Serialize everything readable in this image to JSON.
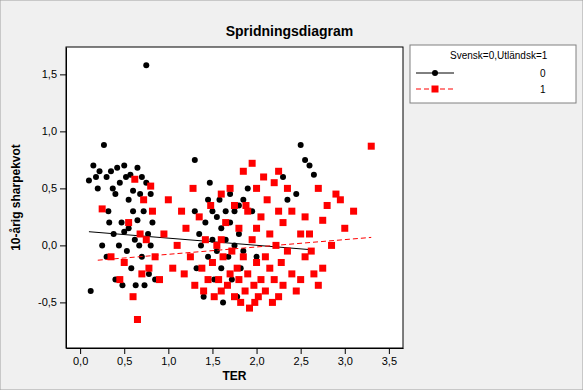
{
  "chart_data": {
    "type": "scatter",
    "title": "Spridningsdiagram",
    "x_label": "TER",
    "y_label": "10-årig sharpekvot",
    "legend_title": "Svensk=0,Utländsk=1",
    "legend": "outside-right",
    "grid": false,
    "xlim": [
      -0.16,
      3.66
    ],
    "ylim": [
      -0.9,
      1.74
    ],
    "xticks": [
      {
        "value": 0,
        "label": "0,0"
      },
      {
        "value": 0.5,
        "label": "0,5"
      },
      {
        "value": 1,
        "label": "1,0"
      },
      {
        "value": 1.5,
        "label": "1,5"
      },
      {
        "value": 2,
        "label": "2,0"
      },
      {
        "value": 2.5,
        "label": "2,5"
      },
      {
        "value": 3,
        "label": "3,0"
      },
      {
        "value": 3.5,
        "label": "3,5"
      }
    ],
    "yticks": [
      {
        "value": -0.5,
        "label": "-0,5"
      },
      {
        "value": 0,
        "label": "0,0"
      },
      {
        "value": 0.5,
        "label": "0,5"
      },
      {
        "value": 1,
        "label": "1,0"
      },
      {
        "value": 1.5,
        "label": "1,5"
      }
    ],
    "series": [
      {
        "name": "0",
        "color": "#000000",
        "marker": "circle",
        "line_style": "solid",
        "x": [
          0.1,
          0.12,
          0.15,
          0.18,
          0.2,
          0.22,
          0.25,
          0.27,
          0.3,
          0.3,
          0.32,
          0.33,
          0.35,
          0.37,
          0.38,
          0.4,
          0.4,
          0.42,
          0.44,
          0.45,
          0.47,
          0.48,
          0.5,
          0.5,
          0.52,
          0.53,
          0.55,
          0.55,
          0.57,
          0.58,
          0.6,
          0.6,
          0.62,
          0.63,
          0.65,
          0.65,
          0.67,
          0.68,
          0.7,
          0.7,
          0.72,
          0.73,
          0.75,
          0.75,
          0.77,
          0.78,
          0.8,
          0.8,
          0.82,
          0.85,
          1.3,
          1.3,
          1.32,
          1.35,
          1.37,
          1.4,
          1.42,
          1.45,
          1.45,
          1.47,
          1.5,
          1.5,
          1.52,
          1.55,
          1.55,
          1.58,
          1.6,
          1.6,
          1.62,
          1.65,
          1.65,
          1.68,
          1.7,
          1.7,
          1.72,
          1.75,
          1.75,
          1.78,
          1.8,
          1.8,
          1.82,
          1.85,
          1.85,
          1.9,
          1.95,
          2.0,
          2.3,
          2.35,
          2.5,
          2.55,
          2.6,
          2.65,
          2.45
        ],
        "values": [
          0.57,
          -0.4,
          0.7,
          0.6,
          0.5,
          0.65,
          0.0,
          0.88,
          0.6,
          -0.1,
          0.3,
          0.2,
          0.65,
          0.5,
          0.1,
          0.45,
          -0.3,
          0.68,
          0.0,
          0.55,
          0.2,
          -0.35,
          0.7,
          0.12,
          0.6,
          -0.05,
          0.4,
          0.15,
          0.62,
          -0.2,
          0.3,
          0.48,
          0.05,
          -0.35,
          0.68,
          0.22,
          0.0,
          0.45,
          0.6,
          -0.1,
          0.3,
          -0.35,
          1.58,
          0.55,
          0.1,
          -0.25,
          0.45,
          0.0,
          0.2,
          -0.3,
          0.75,
          0.3,
          -0.2,
          0.1,
          0.0,
          -0.45,
          0.2,
          0.4,
          -0.1,
          0.55,
          0.3,
          0.05,
          -0.3,
          0.25,
          -0.05,
          0.4,
          0.15,
          -0.2,
          -0.5,
          0.3,
          0.05,
          -0.1,
          0.45,
          0.2,
          -0.3,
          0.3,
          0.0,
          -0.45,
          0.35,
          0.1,
          -0.2,
          0.4,
          -0.05,
          0.5,
          0.3,
          -0.1,
          0.6,
          0.4,
          0.88,
          0.75,
          0.7,
          0.62,
          0.45
        ],
        "fit": {
          "x": [
            0.1,
            2.65
          ],
          "values": [
            0.12,
            -0.04
          ]
        }
      },
      {
        "name": "1",
        "color": "#ff0000",
        "marker": "square",
        "line_style": "dashed",
        "x": [
          0.25,
          0.35,
          0.45,
          0.5,
          0.55,
          0.6,
          0.62,
          0.65,
          0.68,
          0.7,
          0.72,
          0.75,
          0.78,
          0.8,
          0.82,
          0.85,
          0.9,
          0.95,
          1.0,
          1.05,
          1.1,
          1.15,
          1.18,
          1.2,
          1.25,
          1.28,
          1.3,
          1.35,
          1.38,
          1.4,
          1.42,
          1.45,
          1.48,
          1.5,
          1.52,
          1.55,
          1.57,
          1.6,
          1.6,
          1.62,
          1.65,
          1.67,
          1.7,
          1.7,
          1.72,
          1.75,
          1.75,
          1.78,
          1.8,
          1.8,
          1.82,
          1.85,
          1.85,
          1.87,
          1.9,
          1.9,
          1.92,
          1.95,
          1.95,
          1.97,
          2.0,
          2.0,
          2.02,
          2.05,
          2.05,
          2.08,
          2.1,
          2.1,
          2.12,
          2.15,
          2.15,
          2.18,
          2.2,
          2.2,
          2.22,
          2.25,
          2.25,
          2.28,
          2.3,
          2.3,
          2.35,
          2.35,
          2.4,
          2.4,
          2.45,
          2.5,
          2.5,
          2.55,
          2.55,
          2.6,
          2.62,
          2.65,
          2.7,
          2.7,
          2.75,
          2.75,
          2.8,
          2.85,
          2.9,
          2.95,
          3.0,
          3.1,
          3.3,
          2.0,
          1.88,
          2.25,
          1.98,
          1.6
        ],
        "values": [
          0.32,
          -0.1,
          -0.3,
          -0.15,
          0.2,
          -0.45,
          0.58,
          -0.65,
          0.1,
          -0.25,
          0.4,
          0.05,
          -0.2,
          0.52,
          0.3,
          -0.1,
          -0.3,
          0.1,
          0.4,
          -0.2,
          0.0,
          0.3,
          -0.25,
          0.15,
          -0.1,
          0.5,
          -0.35,
          0.25,
          -0.2,
          -0.4,
          0.05,
          -0.3,
          0.35,
          -0.15,
          -0.45,
          0.0,
          -0.3,
          0.45,
          -0.4,
          -0.1,
          0.2,
          -0.35,
          0.5,
          -0.25,
          -0.05,
          0.35,
          -0.45,
          -0.2,
          0.15,
          -0.3,
          -0.5,
          0.65,
          -0.1,
          -0.4,
          0.3,
          -0.25,
          -0.55,
          0.72,
          0.05,
          -0.35,
          0.5,
          -0.15,
          -0.45,
          0.25,
          -0.3,
          0.6,
          -0.1,
          -0.4,
          0.4,
          -0.2,
          0.1,
          -0.5,
          0.55,
          -0.3,
          0.0,
          0.3,
          -0.45,
          -0.15,
          0.2,
          -0.35,
          0.5,
          -0.05,
          0.3,
          -0.25,
          -0.4,
          0.1,
          -0.3,
          0.25,
          -0.1,
          0.1,
          -0.05,
          -0.25,
          0.5,
          -0.35,
          0.22,
          -0.2,
          0.35,
          0.0,
          0.45,
          0.4,
          0.15,
          0.3,
          0.87,
          0.15,
          0.35,
          0.65,
          -0.5,
          0.05
        ],
        "fit": {
          "x": [
            0.2,
            3.3
          ],
          "values": [
            -0.13,
            0.07
          ]
        }
      }
    ]
  }
}
